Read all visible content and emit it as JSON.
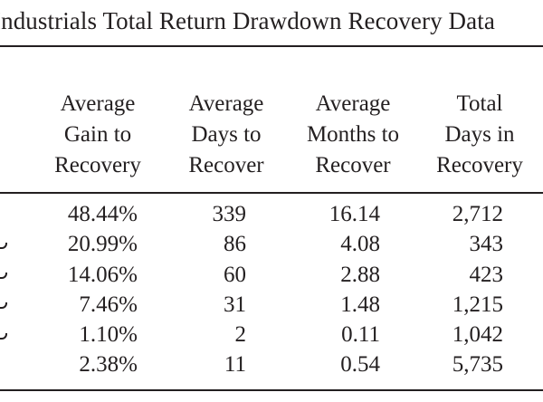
{
  "title": "Industrials Total Return Drawdown Recovery Data",
  "columns": [
    [
      "Average",
      "Gain to",
      "Recovery"
    ],
    [
      "Average",
      "Days to",
      "Recover"
    ],
    [
      "Average",
      "Months to",
      "Recover"
    ],
    [
      "Total",
      "Days in",
      "Recovery"
    ]
  ],
  "rows": [
    [
      "48.44%",
      "339",
      "16.14",
      "2,712"
    ],
    [
      "20.99%",
      "86",
      "4.08",
      "343"
    ],
    [
      "14.06%",
      "60",
      "2.88",
      "423"
    ],
    [
      "7.46%",
      "31",
      "1.48",
      "1,215"
    ],
    [
      "1.10%",
      "2",
      "0.11",
      "1,042"
    ],
    [
      "2.38%",
      "11",
      "0.54",
      "5,735"
    ]
  ]
}
